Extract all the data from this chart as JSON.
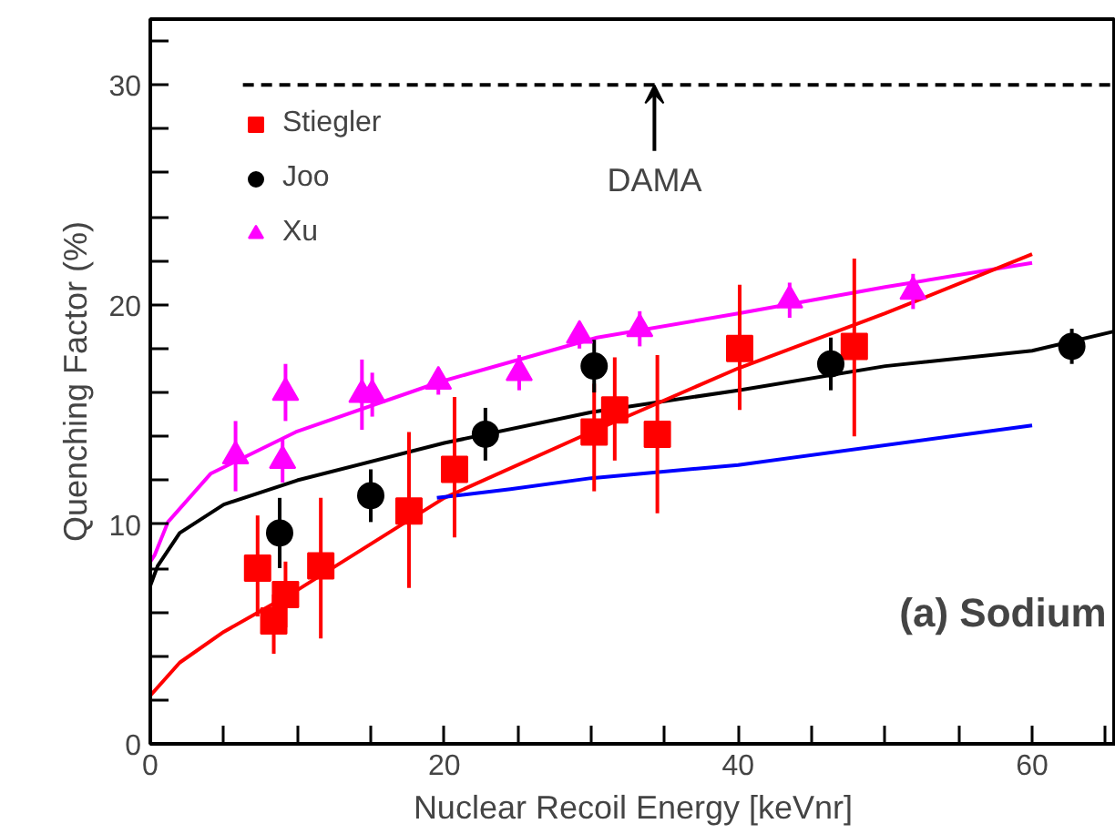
{
  "chart_data": {
    "type": "scatter",
    "xlabel": "Nuclear Recoil Energy [keVnr]",
    "ylabel": "Quenching Factor (%)",
    "xlim": [
      0,
      65.7
    ],
    "ylim": [
      0,
      33
    ],
    "xticks": [
      0,
      {
        "value": 5,
        "label": null
      },
      {
        "value": 10,
        "label": null
      },
      {
        "value": 15,
        "label": null
      },
      20,
      {
        "value": 25,
        "label": null
      },
      {
        "value": 30,
        "label": null
      },
      {
        "value": 35,
        "label": null
      },
      40,
      {
        "value": 45,
        "label": null
      },
      {
        "value": 50,
        "label": null
      },
      {
        "value": 55,
        "label": null
      },
      60,
      {
        "value": 65,
        "label": null
      }
    ],
    "yticks": [
      0,
      {
        "value": 2,
        "label": null
      },
      {
        "value": 4,
        "label": null
      },
      {
        "value": 6,
        "label": null
      },
      {
        "value": 8,
        "label": null
      },
      10,
      {
        "value": 12,
        "label": null
      },
      {
        "value": 14,
        "label": null
      },
      {
        "value": 16,
        "label": null
      },
      {
        "value": 18,
        "label": null
      },
      20,
      {
        "value": 22,
        "label": null
      },
      {
        "value": 24,
        "label": null
      },
      {
        "value": 26,
        "label": null
      },
      {
        "value": 28,
        "label": null
      },
      30,
      {
        "value": 32,
        "label": null
      }
    ],
    "grid": false,
    "legend": "top left",
    "series": [
      {
        "type": "line",
        "color": "#ff00ff",
        "x": [
          0,
          0.3,
          1.2,
          4.1,
          9.9,
          19.8,
          30.4,
          40,
          50,
          60
        ],
        "values": [
          8.3,
          8.6,
          10.1,
          12.3,
          14.2,
          16.5,
          18.5,
          19.6,
          20.8,
          21.9
        ]
      },
      {
        "type": "line",
        "color": "#000000",
        "x": [
          0,
          0.5,
          2,
          5,
          10,
          20,
          30,
          40,
          50,
          60,
          65.7
        ],
        "values": [
          7.2,
          8.1,
          9.6,
          10.9,
          12.0,
          13.7,
          15.1,
          16.1,
          17.2,
          17.9,
          18.8
        ]
      },
      {
        "type": "line",
        "color": "#ff0000",
        "x": [
          0,
          2,
          5,
          10,
          20,
          30,
          40,
          50,
          60
        ],
        "values": [
          2.2,
          3.7,
          5.1,
          7.0,
          11.2,
          14.2,
          17.1,
          19.6,
          22.3
        ]
      },
      {
        "type": "line",
        "color": "#0000ff",
        "x": [
          19.5,
          24.5,
          30,
          40,
          60
        ],
        "values": [
          11.2,
          11.6,
          12.1,
          12.7,
          14.5
        ]
      },
      {
        "type": "line",
        "color": "#000000",
        "line_style": "dashed",
        "x": [
          6.3,
          65.7
        ],
        "values": [
          30,
          30
        ]
      },
      {
        "name": "Stiegler",
        "color": "#ff0000",
        "marker": "square",
        "x": [
          7.3,
          8.4,
          9.2,
          11.6,
          17.6,
          20.7,
          30.2,
          31.6,
          34.5,
          40.1,
          47.9
        ],
        "values": [
          8.0,
          5.6,
          6.8,
          8.1,
          10.6,
          12.5,
          14.2,
          15.2,
          14.1,
          18.0,
          18.1
        ],
        "errors": [
          [
            5.8,
            10.4
          ],
          [
            4.1,
            6.8
          ],
          [
            5.3,
            8.3
          ],
          [
            4.8,
            11.2
          ],
          [
            7.1,
            14.2
          ],
          [
            9.4,
            15.8
          ],
          [
            11.5,
            16.4
          ],
          [
            12.9,
            17.6
          ],
          [
            10.5,
            17.7
          ],
          [
            15.2,
            20.9
          ],
          [
            14.0,
            22.1
          ]
        ]
      },
      {
        "name": "Joo",
        "color": "#000000",
        "marker": "circle",
        "x": [
          8.8,
          15.0,
          22.8,
          30.2,
          46.3,
          62.7
        ],
        "values": [
          9.6,
          11.3,
          14.1,
          17.2,
          17.3,
          18.1
        ],
        "errors": [
          1.6,
          1.2,
          1.2,
          1.2,
          1.2,
          0.8
        ]
      },
      {
        "name": "Xu",
        "color": "#ff00ff",
        "marker": "triangle",
        "x": [
          5.8,
          9.2,
          9.0,
          14.4,
          15.1,
          19.6,
          25.1,
          29.2,
          33.3,
          43.5,
          51.9
        ],
        "values": [
          13.1,
          16.0,
          12.9,
          15.9,
          15.9,
          16.5,
          16.9,
          18.6,
          18.9,
          20.2,
          20.6
        ],
        "errors": [
          1.6,
          1.3,
          1.0,
          1.6,
          1.0,
          0.6,
          0.8,
          0.6,
          0.8,
          0.8,
          0.8
        ]
      }
    ],
    "annotations": [
      {
        "text": "DAMA",
        "x": 34.3,
        "y": 30
      },
      "(a) Sodium"
    ]
  }
}
